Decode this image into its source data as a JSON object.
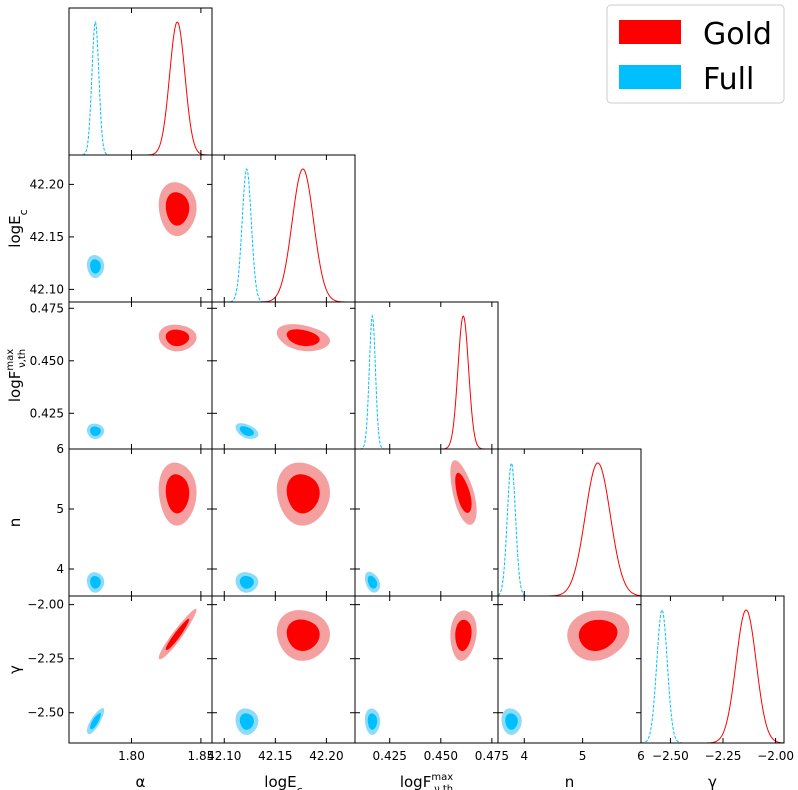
{
  "chart_data": {
    "type": "corner",
    "params": [
      {
        "id": "alpha",
        "label": "α",
        "range": [
          1.755,
          1.858
        ],
        "ticks": [
          1.8,
          1.85
        ],
        "tick_labels": [
          "1.80",
          "1.85"
        ]
      },
      {
        "id": "logEc",
        "label": "logE_c",
        "range": [
          42.088,
          42.228
        ],
        "ticks": [
          42.1,
          42.15,
          42.2
        ],
        "tick_labels": [
          "42.10",
          "42.15",
          "42.20"
        ]
      },
      {
        "id": "logF",
        "label": "logF^max_ν,th",
        "range": [
          0.408,
          0.478
        ],
        "ticks": [
          0.425,
          0.45,
          0.475
        ],
        "tick_labels": [
          "0.425",
          "0.450",
          "0.475"
        ]
      },
      {
        "id": "n",
        "label": "n",
        "range": [
          3.55,
          6.0
        ],
        "ticks": [
          4,
          5,
          6
        ],
        "tick_labels": [
          "4",
          "5",
          "6"
        ]
      },
      {
        "id": "gamma",
        "label": "γ",
        "range": [
          -2.64,
          -1.96
        ],
        "ticks": [
          -2.5,
          -2.25,
          -2.0
        ],
        "tick_labels": [
          "−2.50",
          "−2.25",
          "−2.00"
        ]
      }
    ],
    "series": [
      {
        "name": "Gold",
        "color": "#ff0000",
        "fill_outer": "#f4a0a0",
        "fill_inner": "#ff0000",
        "mean": [
          1.833,
          42.177,
          0.461,
          5.26,
          -2.14
        ],
        "sigma": [
          0.0055,
          0.0105,
          0.0026,
          0.215,
          0.048
        ],
        "corr": [
          [
            1,
            0,
            0,
            0,
            0.95
          ],
          [
            0,
            1,
            -0.25,
            0,
            0
          ],
          [
            0,
            -0.25,
            1,
            -0.55,
            0.15
          ],
          [
            0,
            0,
            -0.55,
            1,
            0.15
          ],
          [
            0.95,
            0,
            0.15,
            0.15,
            1
          ]
        ]
      },
      {
        "name": "Full",
        "color": "#00bfff",
        "fill_outer": "#8adcf8",
        "fill_inner": "#00bfff",
        "mean": [
          1.774,
          42.122,
          0.4165,
          3.78,
          -2.54
        ],
        "sigma": [
          0.0025,
          0.0045,
          0.0015,
          0.07,
          0.025
        ],
        "corr": [
          [
            1,
            0,
            0,
            0,
            0.8
          ],
          [
            0,
            1,
            -0.4,
            0,
            0
          ],
          [
            0,
            -0.4,
            1,
            -0.3,
            0
          ],
          [
            0,
            0,
            -0.3,
            1,
            0
          ],
          [
            0.8,
            0,
            0,
            0,
            1
          ]
        ]
      }
    ],
    "legend": {
      "position": "top-right",
      "entries": [
        "Gold",
        "Full"
      ]
    }
  }
}
